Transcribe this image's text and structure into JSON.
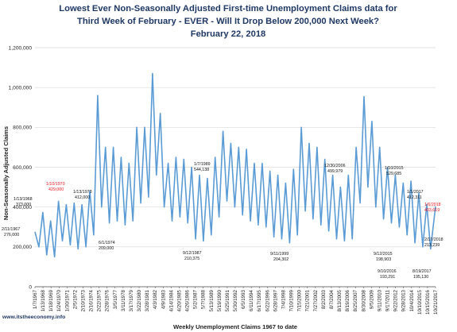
{
  "chart_data": {
    "type": "line",
    "title_lines": [
      "Lowest Ever Non-Seasonally Adjusted First-time Unemployment Claims data for",
      "Third Week of February - EVER - Will It Drop Below 200,000 Next Week?",
      "February 22, 2018"
    ],
    "ylabel": "Non-Seasonally Adjusted Claims",
    "xlabel": "Weekly Unemployment Claims 1967 to date",
    "ylim": [
      0,
      1200000
    ],
    "yticks": [
      0,
      200000,
      400000,
      600000,
      800000,
      1000000,
      1200000
    ],
    "ytick_labels": [
      "0",
      "200,000",
      "400,000",
      "600,000",
      "800,000",
      "1,000,000",
      "1,200,000"
    ],
    "grid": "horizontal",
    "x_tick_labels": [
      "1/7/1967",
      "1/13/1968",
      "1/18/1969",
      "1/24/1970",
      "1/30/1971",
      "2/5/1972",
      "2/10/1973",
      "2/16/1974",
      "2/22/1975",
      "2/28/1976",
      "3/5/1977",
      "3/11/1978",
      "3/17/1979",
      "3/22/1980",
      "3/28/1981",
      "4/3/1982",
      "4/9/1983",
      "4/14/1984",
      "4/20/1985",
      "4/26/1986",
      "5/2/1987",
      "5/7/1988",
      "5/13/1989",
      "5/19/1990",
      "5/25/1991",
      "5/30/1992",
      "6/5/1993",
      "6/11/1994",
      "6/17/1995",
      "6/22/1996",
      "6/28/1997",
      "7/4/1998",
      "7/10/1999",
      "7/15/2000",
      "7/21/2001",
      "7/27/2002",
      "8/2/2003",
      "8/7/2004",
      "8/13/2005",
      "8/19/2006",
      "8/25/2007",
      "8/30/2008",
      "9/5/2009",
      "9/11/2010",
      "9/17/2011",
      "9/22/2012",
      "9/28/2013",
      "10/4/2014",
      "10/10/2015",
      "10/15/2016",
      "10/21/2017"
    ],
    "series": [
      {
        "color": "#5b9bd5",
        "x": [
          1967,
          1967.5,
          1968,
          1968.5,
          1969,
          1969.5,
          1970,
          1970.5,
          1971,
          1971.5,
          1972,
          1972.5,
          1973,
          1973.5,
          1974,
          1974.5,
          1975,
          1975.5,
          1976,
          1976.5,
          1977,
          1977.5,
          1978,
          1978.5,
          1979,
          1979.5,
          1980,
          1980.5,
          1981,
          1981.5,
          1982,
          1982.5,
          1983,
          1983.5,
          1984,
          1984.5,
          1985,
          1985.5,
          1986,
          1986.5,
          1987,
          1987.5,
          1988,
          1988.5,
          1989,
          1989.5,
          1990,
          1990.5,
          1991,
          1991.5,
          1992,
          1992.5,
          1993,
          1993.5,
          1994,
          1994.5,
          1995,
          1995.5,
          1996,
          1996.5,
          1997,
          1997.5,
          1998,
          1998.5,
          1999,
          1999.5,
          2000,
          2000.5,
          2001,
          2001.5,
          2002,
          2002.5,
          2003,
          2003.5,
          2004,
          2004.5,
          2005,
          2005.5,
          2006,
          2006.5,
          2007,
          2007.5,
          2008,
          2008.5,
          2009,
          2009.5,
          2010,
          2010.5,
          2011,
          2011.5,
          2012,
          2012.5,
          2013,
          2013.5,
          2014,
          2014.5,
          2015,
          2015.5,
          2016,
          2016.5,
          2017,
          2017.5,
          2018.13
        ],
        "y": [
          276000,
          200000,
          373000,
          160000,
          330000,
          150000,
          429000,
          230000,
          412000,
          210000,
          420000,
          190000,
          412000,
          200000,
          480000,
          260000,
          960000,
          400000,
          700000,
          320000,
          700000,
          330000,
          650000,
          310000,
          620000,
          330000,
          800000,
          420000,
          800000,
          450000,
          1070000,
          560000,
          870000,
          400000,
          620000,
          330000,
          650000,
          350000,
          640000,
          320000,
          600000,
          240000,
          560000,
          230000,
          544138,
          260000,
          650000,
          350000,
          780000,
          430000,
          720000,
          400000,
          700000,
          360000,
          690000,
          330000,
          620000,
          310000,
          620000,
          300000,
          580000,
          250000,
          560000,
          240000,
          520000,
          220000,
          590000,
          260000,
          800000,
          380000,
          720000,
          340000,
          700000,
          310000,
          640000,
          280000,
          560000,
          240000,
          499979,
          230000,
          560000,
          240000,
          700000,
          420000,
          955000,
          500000,
          830000,
          400000,
          700000,
          340000,
          600000,
          320000,
          560000,
          300000,
          520000,
          260000,
          529685,
          220000,
          470000,
          200000,
          412311,
          190000,
          403619
        ]
      }
    ],
    "annotations": [
      {
        "date": "2/11/1967",
        "value": "276,000",
        "color": "black"
      },
      {
        "date": "1/13/1968",
        "value": "373,000",
        "color": "black"
      },
      {
        "date": "1/10/1970",
        "value": "429,000",
        "color": "red"
      },
      {
        "date": "1/13/1973",
        "value": "412,000",
        "color": "black"
      },
      {
        "date": "6/1/1974",
        "value": "209,000",
        "color": "black"
      },
      {
        "date": "9/12/1987",
        "value": "210,375",
        "color": "black"
      },
      {
        "date": "1/7/1989",
        "value": "544,138",
        "color": "black"
      },
      {
        "date": "9/11/1999",
        "value": "204,302",
        "color": "black"
      },
      {
        "date": "12/30/2006",
        "value": "499,979",
        "color": "black"
      },
      {
        "date": "1/10/2015",
        "value": "529,685",
        "color": "black"
      },
      {
        "date": "9/12/2015",
        "value": "198,903",
        "color": "black"
      },
      {
        "date": "9/10/2016",
        "value": "193,291",
        "color": "black"
      },
      {
        "date": "1/1/2017",
        "value": "412,311",
        "color": "black"
      },
      {
        "date": "1/6/2018",
        "value": "403,619",
        "color": "red"
      },
      {
        "date": "8/19/2017",
        "value": "195,130",
        "color": "black"
      },
      {
        "date": "2/17/2018",
        "value": "213,239",
        "color": "black"
      }
    ]
  },
  "footer": {
    "site": "www.itstheeconomy.info"
  }
}
